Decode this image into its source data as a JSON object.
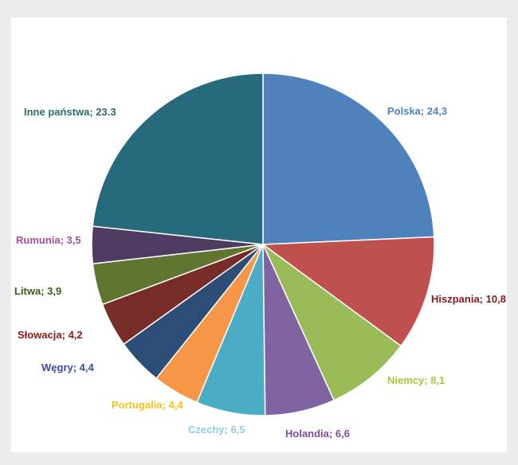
{
  "chart_data": {
    "type": "pie",
    "title": "",
    "slices": [
      {
        "name": "Polska",
        "value": 24.3,
        "label": "Polska; 24,3",
        "color": "#4f81bd",
        "label_color": "#4f81bd"
      },
      {
        "name": "Hiszpania",
        "value": 10.8,
        "label": "Hiszpania; 10,8",
        "color": "#c0504d",
        "label_color": "#7f1d1d"
      },
      {
        "name": "Niemcy",
        "value": 8.1,
        "label": "Niemcy; 8,1",
        "color": "#9bbb59",
        "label_color": "#a8c93a"
      },
      {
        "name": "Holandia",
        "value": 6.6,
        "label": "Holandia; 6,6",
        "color": "#8064a2",
        "label_color": "#7a4f9a"
      },
      {
        "name": "Czechy",
        "value": 6.5,
        "label": "Czechy; 6,5",
        "color": "#4bacc6",
        "label_color": "#8ecfe2"
      },
      {
        "name": "Portugalia",
        "value": 4.4,
        "label": "Portugalia; 4,4",
        "color": "#f79646",
        "label_color": "#f0c419"
      },
      {
        "name": "Węgry",
        "value": 4.4,
        "label": "Węgry; 4,4",
        "color": "#2c4d75",
        "label_color": "#3b4aa8"
      },
      {
        "name": "Słowacja",
        "value": 4.2,
        "label": "Słowacja; 4,2",
        "color": "#772c2a",
        "label_color": "#8b1a1a"
      },
      {
        "name": "Litwa",
        "value": 3.9,
        "label": "Litwa; 3,9",
        "color": "#5f7530",
        "label_color": "#3d5a1a"
      },
      {
        "name": "Rumunia",
        "value": 3.5,
        "label": "Rumunia; 3,5",
        "color": "#4d3b62",
        "label_color": "#a24ea6"
      },
      {
        "name": "Inne państwa",
        "value": 23.3,
        "label": "Inne państwa; 23.3",
        "color": "#276a7c",
        "label_color": "#2f6b6b"
      }
    ]
  }
}
